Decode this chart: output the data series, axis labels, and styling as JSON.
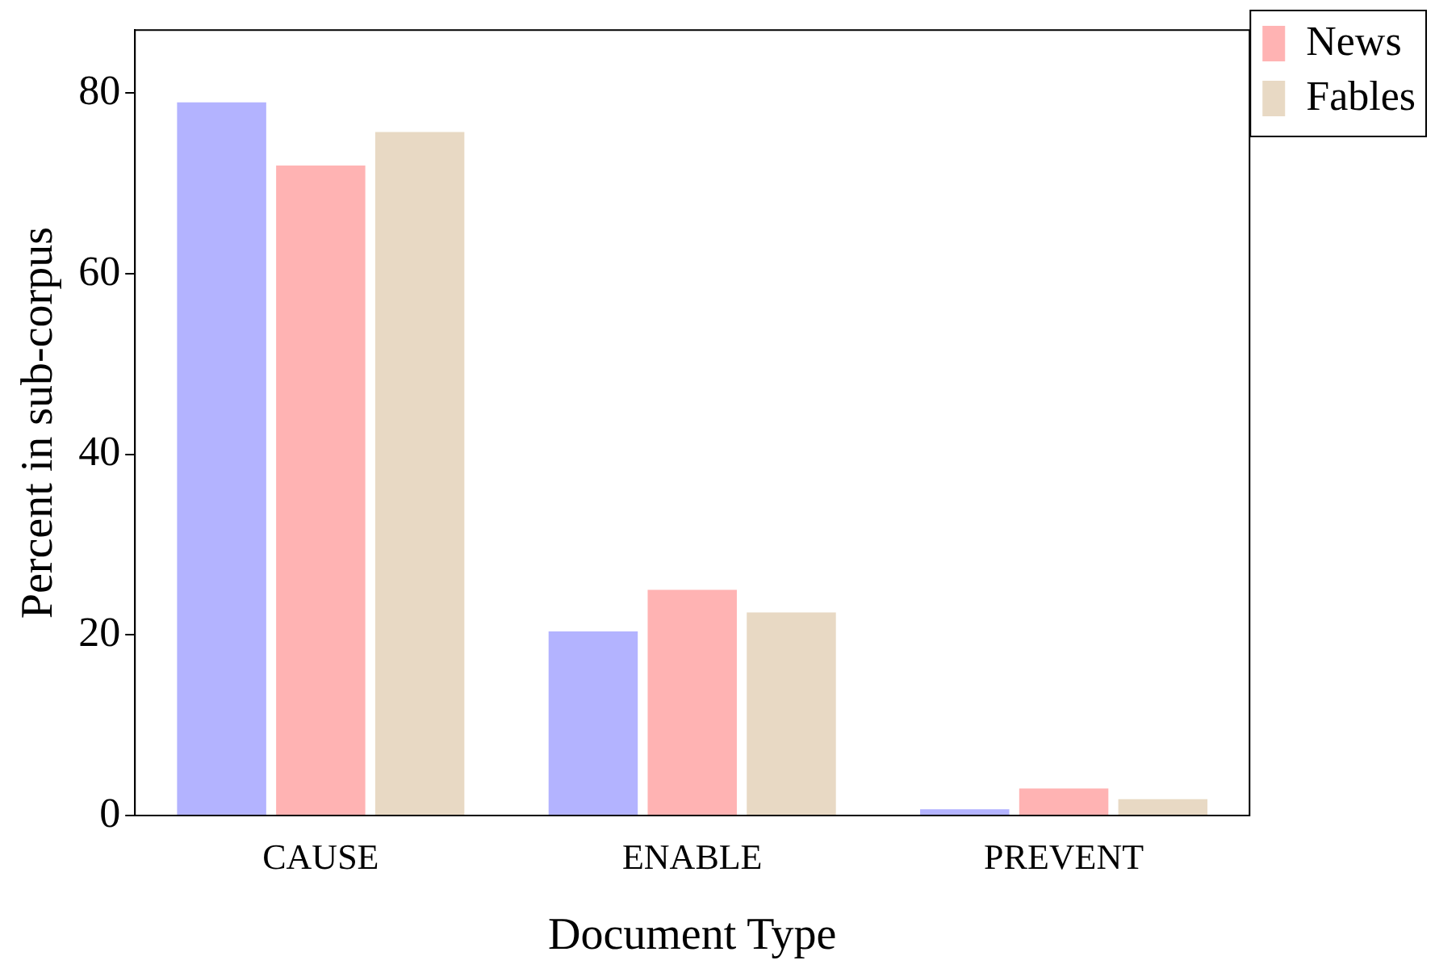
{
  "chart_data": {
    "type": "bar",
    "xlabel": "Document Type",
    "ylabel": "Percent in sub-corpus",
    "categories": [
      "CAUSE",
      "ENABLE",
      "PREVENT"
    ],
    "series": [
      {
        "color": "#b3b3ff",
        "values": [
          79,
          20.4,
          0.7
        ]
      },
      {
        "name": "News",
        "color": "#ffb3b3",
        "values": [
          72,
          25,
          3
        ]
      },
      {
        "name": "Fables",
        "color": "#e8d9c4",
        "values": [
          75.7,
          22.5,
          1.8
        ]
      }
    ],
    "ylim": [
      0,
      87
    ],
    "yticks": [
      0,
      20,
      40,
      60,
      80
    ],
    "grid": false,
    "legend": "top right"
  }
}
